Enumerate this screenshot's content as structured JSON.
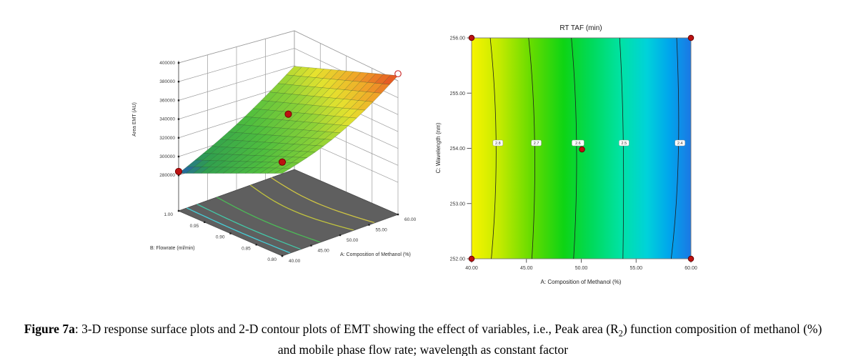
{
  "caption": {
    "label": "Figure 7a",
    "text_before_sub": ": 3-D response surface plots and 2-D contour plots of EMT showing the effect of variables, i.e., Peak area (R",
    "subscript": "2",
    "text_after_sub": ") function composition of methanol (%) and mobile phase flow rate; wavelength as constant factor"
  },
  "chart_data": [
    {
      "type": "surface3d",
      "zlabel": "Area EMT (AU)",
      "xlabel": "A: Composition of Methanol (%)",
      "ylabel": "B: Flowrate (ml/min)",
      "z_ticks": [
        "400000",
        "380000",
        "360000",
        "340000",
        "320000",
        "300000",
        "280000"
      ],
      "x_ticks": [
        "40.00",
        "45.00",
        "50.00",
        "55.00",
        "60.00"
      ],
      "y_ticks": [
        "1.00",
        "0.95",
        "0.90",
        "0.85",
        "0.80"
      ],
      "x_range": [
        40,
        60
      ],
      "y_range": [
        0.8,
        1.0
      ],
      "z_range": [
        280000,
        400000
      ],
      "corner_values": {
        "A40_B1.00": 282000,
        "A40_B0.80": 330000,
        "A60_B0.80": 390000,
        "A60_B1.00": 352000
      },
      "design_points": [
        {
          "A": 40,
          "B": 1.0,
          "area": 284000,
          "style": "filled"
        },
        {
          "A": 40,
          "B": 0.8,
          "area": 342000,
          "style": "filled"
        },
        {
          "A": 50,
          "B": 0.9,
          "area": 347000,
          "style": "filled"
        },
        {
          "A": 60,
          "B": 0.8,
          "area": 392000,
          "style": "open"
        }
      ],
      "floor_color": "#5f5f5f",
      "floor_contours": [
        {
          "A": 41.4,
          "color": "#45cfd8",
          "bow": 0.012
        },
        {
          "A": 43.2,
          "color": "#43c9a8",
          "bow": 0.018
        },
        {
          "A": 46.6,
          "color": "#4cbb57",
          "bow": 0.035
        },
        {
          "A": 52.4,
          "color": "#c0c33e",
          "bow": 0.075
        },
        {
          "A": 56.0,
          "color": "#cfc544",
          "bow": 0.06
        }
      ],
      "colormap": [
        {
          "t": 0.0,
          "color": "#1e4fc4"
        },
        {
          "t": 0.13,
          "color": "#2f9e4f"
        },
        {
          "t": 0.35,
          "color": "#4fbe3e"
        },
        {
          "t": 0.55,
          "color": "#8ed237"
        },
        {
          "t": 0.7,
          "color": "#e6e22e"
        },
        {
          "t": 0.84,
          "color": "#f0a028"
        },
        {
          "t": 1.0,
          "color": "#e03520"
        }
      ],
      "point_color": "#bb1111"
    },
    {
      "type": "contour",
      "title": "RT TAF (min)",
      "xlabel": "A: Composition of Methanol (%)",
      "ylabel": "C: Wavelength (nm)",
      "x_ticks": [
        "40.00",
        "45.00",
        "50.00",
        "55.00",
        "60.00"
      ],
      "y_ticks": [
        "256.00",
        "255.00",
        "254.00",
        "253.00",
        "252.00"
      ],
      "x_range": [
        40,
        60
      ],
      "y_range": [
        252,
        256
      ],
      "contour_lines": [
        {
          "label": "2.8",
          "A_top": 41.7,
          "A_mid": 42.4,
          "A_bot": 41.8
        },
        {
          "label": "2.7",
          "A_top": 45.2,
          "A_mid": 45.9,
          "A_bot": 45.5
        },
        {
          "label": "2.6",
          "A_top": 49.1,
          "A_mid": 49.7,
          "A_bot": 49.3
        },
        {
          "label": "2.5",
          "A_top": 53.5,
          "A_mid": 53.9,
          "A_bot": 53.8
        },
        {
          "label": "2.4",
          "A_top": 58.7,
          "A_mid": 59.0,
          "A_bot": 58.2
        }
      ],
      "design_points": [
        {
          "A": 40,
          "C": 256
        },
        {
          "A": 60,
          "C": 256
        },
        {
          "A": 50,
          "C": 254
        },
        {
          "A": 40,
          "C": 252
        },
        {
          "A": 60,
          "C": 252
        }
      ],
      "gradient_stops": [
        {
          "pos": 0.0,
          "color": "#f8f400"
        },
        {
          "pos": 0.13,
          "color": "#c2ea00"
        },
        {
          "pos": 0.27,
          "color": "#66dc00"
        },
        {
          "pos": 0.42,
          "color": "#0ed414"
        },
        {
          "pos": 0.55,
          "color": "#00da5c"
        },
        {
          "pos": 0.68,
          "color": "#00e2a4"
        },
        {
          "pos": 0.8,
          "color": "#00d2da"
        },
        {
          "pos": 0.9,
          "color": "#00a6ec"
        },
        {
          "pos": 1.0,
          "color": "#1b78e4"
        }
      ],
      "point_color": "#bb1111"
    }
  ]
}
